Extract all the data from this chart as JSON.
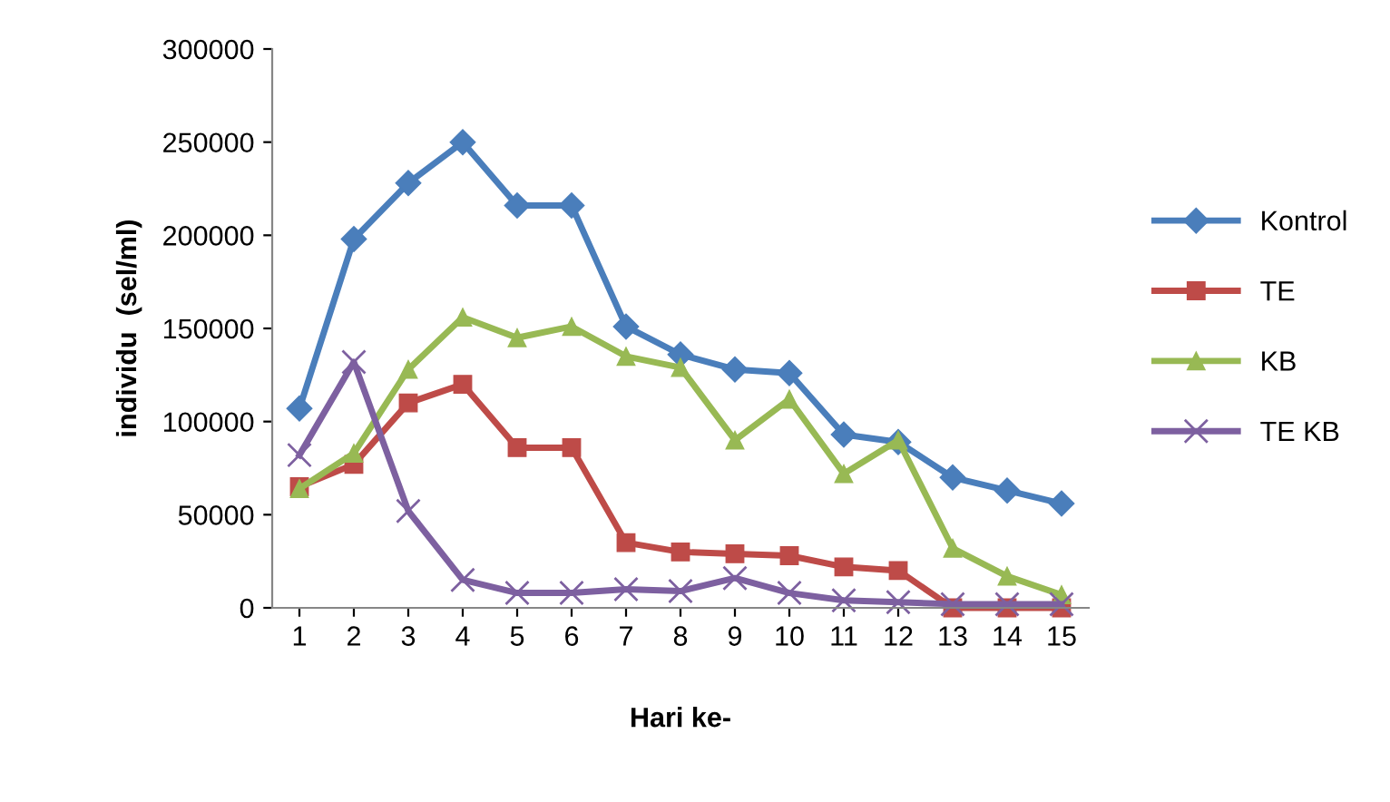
{
  "chart_data": {
    "type": "line",
    "xlabel": "Hari ke-",
    "ylabel": "individu  (sel/ml)",
    "categories": [
      "1",
      "2",
      "3",
      "4",
      "5",
      "6",
      "7",
      "8",
      "9",
      "10",
      "11",
      "12",
      "13",
      "14",
      "15"
    ],
    "ylim": [
      0,
      300000
    ],
    "yticks": [
      0,
      50000,
      100000,
      150000,
      200000,
      250000,
      300000
    ],
    "grid": false,
    "legend": "right",
    "series": [
      {
        "name": "Kontrol",
        "color": "#4a7ebb",
        "marker": "diamond",
        "values": [
          107000,
          198000,
          228000,
          250000,
          216000,
          216000,
          151000,
          136000,
          128000,
          126000,
          93000,
          89000,
          70000,
          63000,
          56000
        ]
      },
      {
        "name": "TE",
        "color": "#be4b48",
        "marker": "square",
        "values": [
          65000,
          77000,
          110000,
          120000,
          86000,
          86000,
          35000,
          30000,
          29000,
          28000,
          22000,
          20000,
          0,
          0,
          0
        ]
      },
      {
        "name": "KB",
        "color": "#98b954",
        "marker": "triangle",
        "values": [
          64000,
          83000,
          128000,
          156000,
          145000,
          151000,
          135000,
          129000,
          90000,
          112000,
          72000,
          90000,
          32000,
          17000,
          7000
        ]
      },
      {
        "name": "TE KB",
        "color": "#7d60a0",
        "marker": "cross",
        "values": [
          82000,
          132000,
          52000,
          15000,
          8000,
          8000,
          10000,
          9000,
          16000,
          8000,
          4000,
          3000,
          2000,
          2000,
          2000
        ]
      }
    ]
  }
}
